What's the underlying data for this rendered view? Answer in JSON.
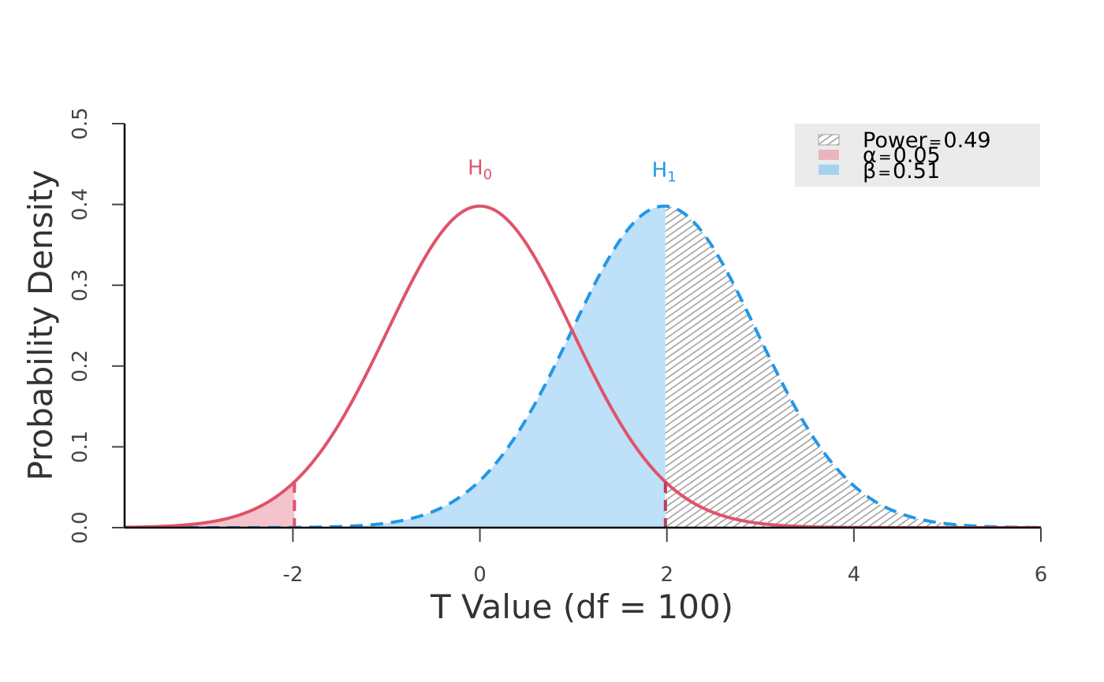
{
  "chart_data": {
    "type": "area",
    "xlabel": "T Value (df = 100)",
    "ylabel": "Probability Density",
    "xlim": [
      -3.8,
      6
    ],
    "ylim": [
      0,
      0.5
    ],
    "x_ticks": [
      "-2",
      "0",
      "2",
      "4",
      "6"
    ],
    "x_tick_values": [
      -2,
      0,
      2,
      4,
      6
    ],
    "y_ticks": [
      "0.0",
      "0.1",
      "0.2",
      "0.3",
      "0.4",
      "0.5"
    ],
    "y_tick_values": [
      0,
      0.1,
      0.2,
      0.3,
      0.4,
      0.5
    ],
    "df": 100,
    "critical_value": 1.984,
    "noncentrality": 1.97,
    "legend_placement": "top-right",
    "colors": {
      "h0": "#df536b",
      "h1": "#2297e6",
      "alpha_fill": "#f4c4cc",
      "beta_fill": "#bee0f8",
      "power_hatch": "#a0a0a0",
      "legend_bg": "#ebebeb"
    },
    "curve_labels": {
      "h0": {
        "main": "H",
        "sub": "0",
        "x": 0,
        "y": 0.445
      },
      "h1": {
        "main": "H",
        "sub": "1",
        "x": 1.97,
        "y": 0.442
      }
    },
    "series": [
      {
        "name": "H0",
        "mean": 0,
        "line": "solid"
      },
      {
        "name": "H1",
        "mean": 1.97,
        "line": "dashed"
      }
    ],
    "legend": [
      {
        "key": "power",
        "symbol": "Power",
        "eq": "=",
        "value": "0.49"
      },
      {
        "key": "alpha",
        "symbol": "α",
        "eq": "=",
        "value": "0.05"
      },
      {
        "key": "beta",
        "symbol": "β",
        "eq": "=",
        "value": "0.51"
      }
    ]
  }
}
